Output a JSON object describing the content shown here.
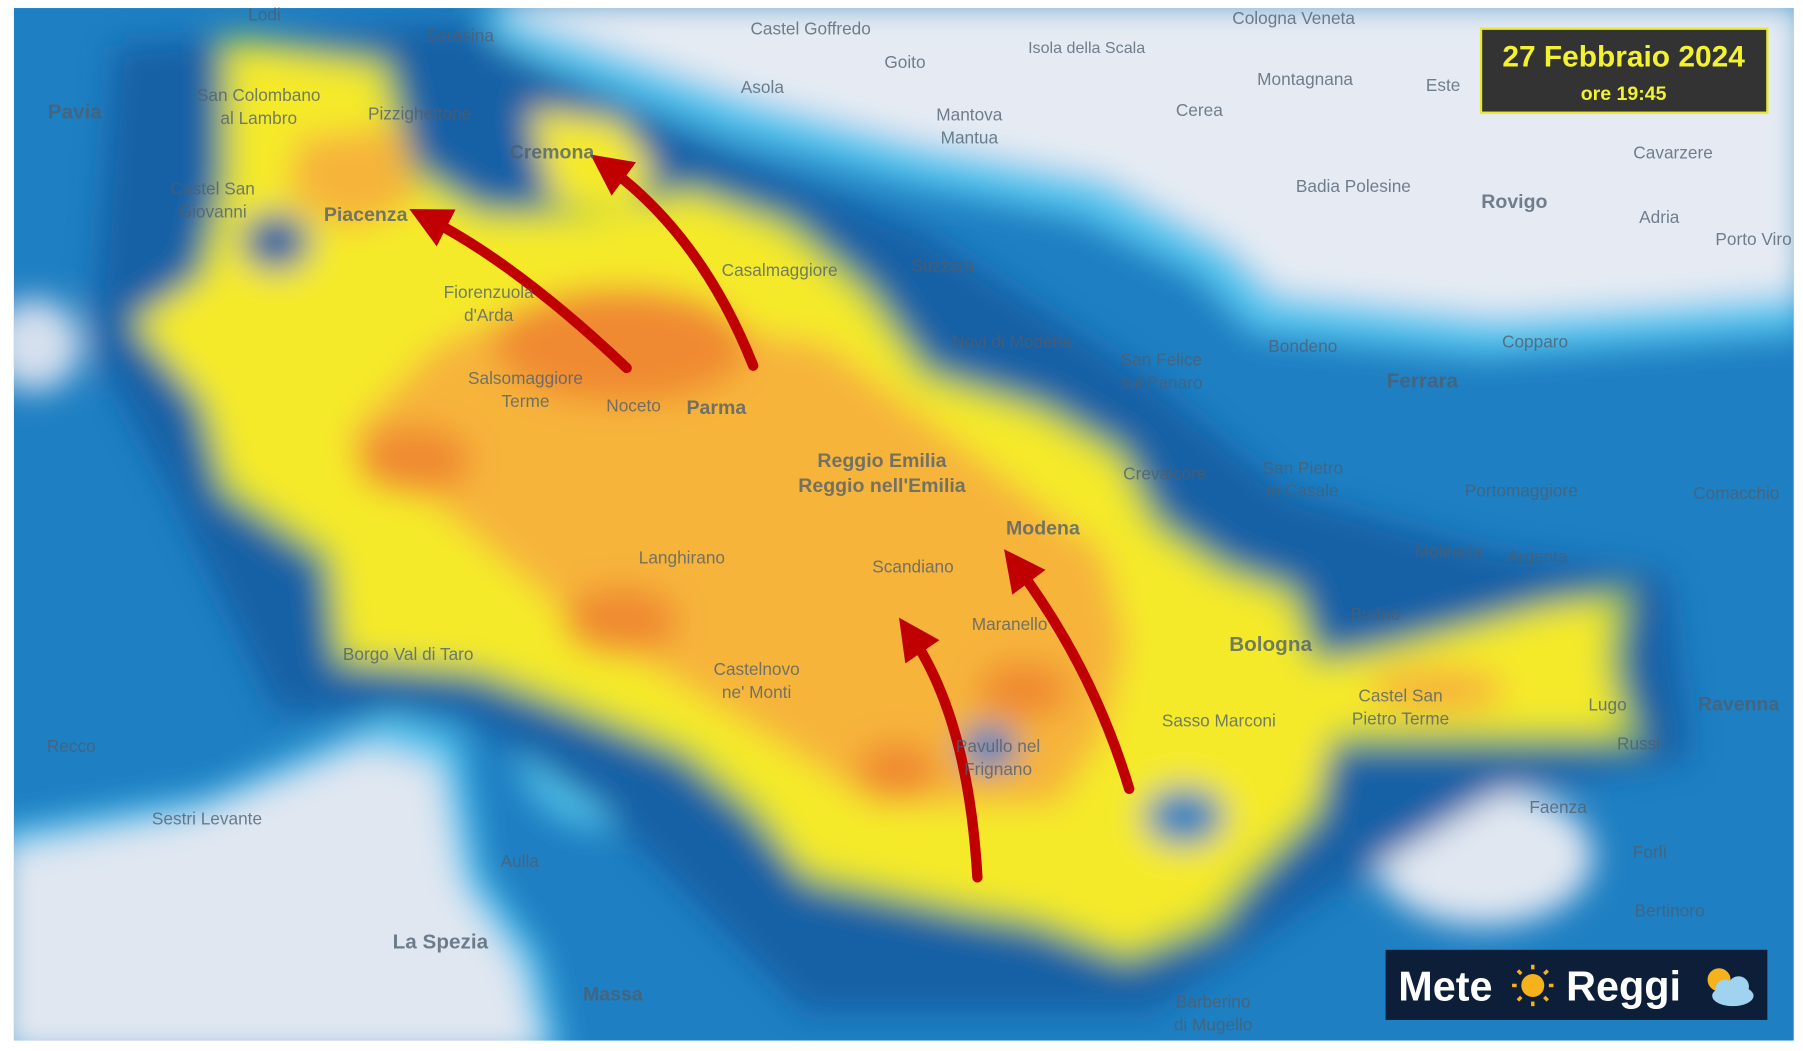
{
  "header": {
    "date": "27 Febbraio 2024",
    "time": "ore 19:45"
  },
  "logo": {
    "parts": [
      "Mete",
      "Reggi"
    ]
  },
  "places": [
    [
      "Lodi"
    ],
    [
      "Soresina"
    ],
    [
      "Castel Goffredo"
    ],
    [
      "Goito"
    ],
    [
      "Isola della Scala"
    ],
    [
      "Cologna Veneta"
    ],
    [
      "Montagnana"
    ],
    [
      "Este"
    ],
    [
      "Pavia"
    ],
    [
      "San Colombano",
      "al Lambro"
    ],
    [
      "Pizzighettone"
    ],
    [
      "Asola"
    ],
    [
      "Mantova",
      "Mantua"
    ],
    [
      "Cerea"
    ],
    [
      "Cremona"
    ],
    [
      "Cavarzere"
    ],
    [
      "Castel San",
      "Giovanni"
    ],
    [
      "Piacenza"
    ],
    [
      "Badia Polesine"
    ],
    [
      "Rovigo"
    ],
    [
      "Adria"
    ],
    [
      "Porto Viro"
    ],
    [
      "Casalmaggiore"
    ],
    [
      "Suzzara"
    ],
    [
      "Fiorenzuola",
      "d'Arda"
    ],
    [
      "Novi di Modena"
    ],
    [
      "Bondeno"
    ],
    [
      "Copparo"
    ],
    [
      "San Felice",
      "sul Panaro"
    ],
    [
      "Ferrara"
    ],
    [
      "Salsomaggiore",
      "Terme"
    ],
    [
      "Noceto"
    ],
    [
      "Parma"
    ],
    [
      "Reggio Emilia",
      "Reggio nell'Emilia"
    ],
    [
      "Crevalcore"
    ],
    [
      "San Pietro",
      "in Casale"
    ],
    [
      "Portomaggiore"
    ],
    [
      "Comacchio"
    ],
    [
      "Modena"
    ],
    [
      "Molinella"
    ],
    [
      "Argenta"
    ],
    [
      "Langhirano"
    ],
    [
      "Scandiano"
    ],
    [
      "Budrio"
    ],
    [
      "Maranello"
    ],
    [
      "Bologna"
    ],
    [
      "Borgo Val di Taro"
    ],
    [
      "Castelnovo",
      "ne' Monti"
    ],
    [
      "Castel San",
      "Pietro Terme"
    ],
    [
      "Lugo"
    ],
    [
      "Ravenna"
    ],
    [
      "Sasso Marconi"
    ],
    [
      "Recco"
    ],
    [
      "Pavullo nel",
      "Frignano"
    ],
    [
      "Russi"
    ],
    [
      "Faenza"
    ],
    [
      "Sestri Levante"
    ],
    [
      "Forlì"
    ],
    [
      "Aulla"
    ],
    [
      "Bertinoro"
    ],
    [
      "La Spezia"
    ],
    [
      "Massa"
    ],
    [
      "Barberino",
      "di Mugello"
    ]
  ]
}
